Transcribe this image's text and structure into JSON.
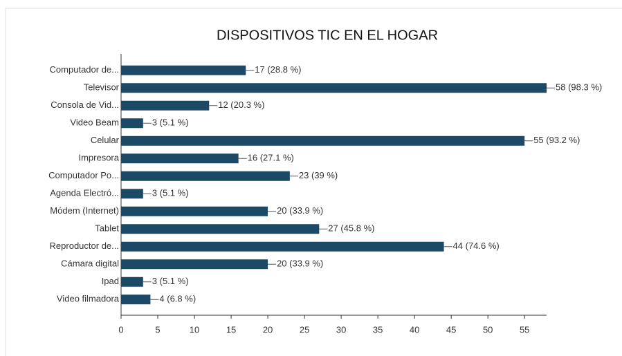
{
  "chart_data": {
    "type": "bar",
    "orientation": "horizontal",
    "title": "DISPOSITIVOS TIC EN EL HOGAR",
    "categories": [
      "Computador de...",
      "Televisor",
      "Consola de Vid...",
      "Video Beam",
      "Celular",
      "Impresora",
      "Computador Po...",
      "Agenda Electró...",
      "Módem (Internet)",
      "Tablet",
      "Reproductor de...",
      "Cámara digital",
      "Ipad",
      "Video filmadora"
    ],
    "values": [
      17,
      58,
      12,
      3,
      55,
      16,
      23,
      3,
      20,
      27,
      44,
      20,
      3,
      4
    ],
    "value_labels": [
      "17 (28.8 %)",
      "58 (98.3 %)",
      "12 (20.3 %)",
      "3 (5.1 %)",
      "55 (93.2 %)",
      "16 (27.1 %)",
      "23 (39 %)",
      "3 (5.1 %)",
      "20 (33.9 %)",
      "27 (45.8 %)",
      "44 (74.6 %)",
      "20 (33.9 %)",
      "3 (5.1 %)",
      "4 (6.8 %)"
    ],
    "color": "#1c4966",
    "xlim": [
      0,
      58
    ],
    "xticks": [
      0,
      5,
      10,
      15,
      20,
      25,
      30,
      35,
      40,
      45,
      50,
      55
    ]
  }
}
